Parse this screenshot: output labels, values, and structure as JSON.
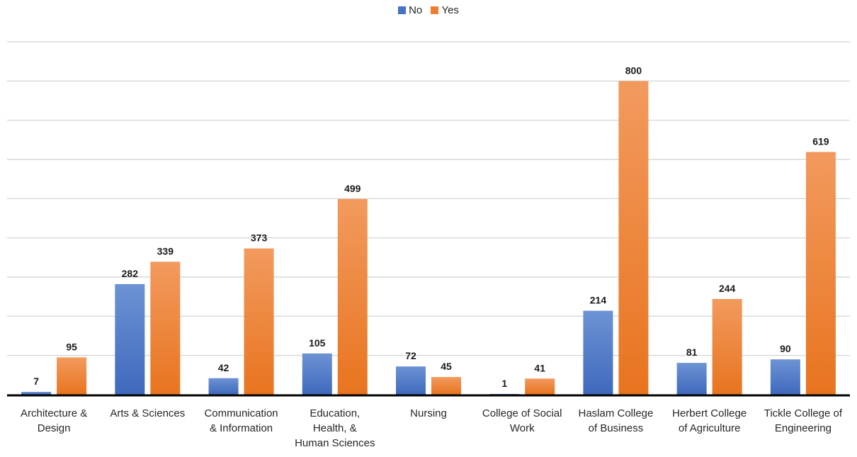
{
  "chart_data": {
    "type": "bar",
    "categories": [
      [
        "Architecture &",
        "Design"
      ],
      [
        "Arts & Sciences"
      ],
      [
        "Communication",
        "& Information"
      ],
      [
        "Education,",
        "Health, &",
        "Human Sciences"
      ],
      [
        "Nursing"
      ],
      [
        "College of Social",
        "Work"
      ],
      [
        "Haslam College",
        "of Business"
      ],
      [
        "Herbert College",
        "of Agriculture"
      ],
      [
        "Tickle College of",
        "Engineering"
      ]
    ],
    "series": [
      {
        "name": "No",
        "color": "#4472c4",
        "values": [
          7,
          282,
          42,
          105,
          72,
          1,
          214,
          81,
          90
        ]
      },
      {
        "name": "Yes",
        "color": "#ed7d31",
        "values": [
          95,
          339,
          373,
          499,
          45,
          41,
          800,
          244,
          619
        ]
      }
    ],
    "ylim": [
      0,
      900
    ],
    "grid": true,
    "legend_position": "top-center",
    "title": "",
    "xlabel": "",
    "ylabel": ""
  }
}
